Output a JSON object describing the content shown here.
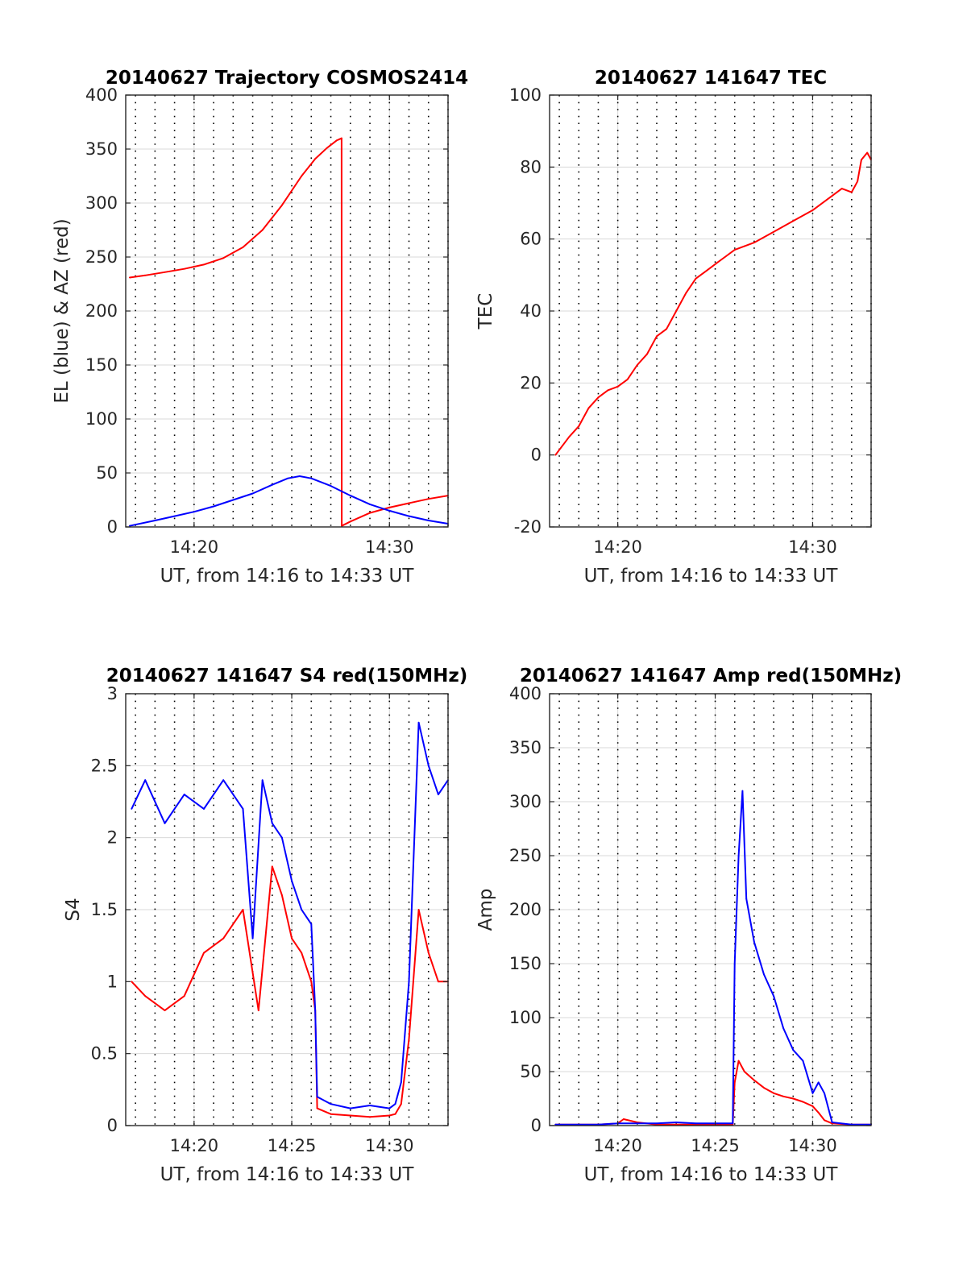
{
  "figure": {
    "background": "#ffffff",
    "grid_color": "#d9d9d9",
    "dotted_color": "#000000",
    "axis_color": "#262626"
  },
  "chart_data": [
    {
      "id": "trajectory",
      "type": "line",
      "title": "20140627 Trajectory COSMOS2414",
      "xlabel": "UT, from 14:16 to 14:33 UT",
      "ylabel": "EL (blue) & AZ (red)",
      "xlim_minutes": [
        16.5,
        33.0
      ],
      "ylim": [
        0,
        400
      ],
      "yticks": [
        "0",
        "50",
        "100",
        "150",
        "200",
        "250",
        "300",
        "350",
        "400"
      ],
      "xticks": [
        {
          "minute": 20,
          "label": "14:20"
        },
        {
          "minute": 30,
          "label": "14:30"
        }
      ],
      "grid": true,
      "series": [
        {
          "color": "#ff0000",
          "x": [
            16.7,
            17.5,
            18.5,
            19.5,
            20.5,
            21.5,
            22.5,
            23.5,
            24.5,
            25.5,
            26.2,
            26.8,
            27.3,
            27.55,
            27.56,
            28.0,
            29.0,
            30.0,
            31.0,
            32.0,
            33.0
          ],
          "y": [
            231,
            233,
            236,
            239,
            243,
            249,
            259,
            275,
            298,
            325,
            341,
            351,
            358,
            360,
            1,
            5,
            13,
            18,
            22,
            26,
            29
          ]
        },
        {
          "color": "#0000ff",
          "x": [
            16.7,
            18.0,
            19.0,
            20.0,
            21.0,
            22.0,
            23.0,
            24.0,
            24.8,
            25.4,
            26.0,
            27.0,
            28.0,
            29.0,
            30.0,
            31.0,
            32.0,
            33.0
          ],
          "y": [
            1,
            6,
            10,
            14,
            19,
            25,
            31,
            39,
            45,
            47,
            45,
            38,
            29,
            21,
            15,
            10,
            6,
            3
          ]
        }
      ]
    },
    {
      "id": "tec",
      "type": "line",
      "title": "20140627 141647 TEC",
      "xlabel": "UT, from 14:16 to 14:33 UT",
      "ylabel": "TEC",
      "xlim_minutes": [
        16.5,
        33.0
      ],
      "ylim": [
        -20,
        100
      ],
      "yticks": [
        "-20",
        "0",
        "20",
        "40",
        "60",
        "80",
        "100"
      ],
      "xticks": [
        {
          "minute": 20,
          "label": "14:20"
        },
        {
          "minute": 30,
          "label": "14:30"
        }
      ],
      "grid": true,
      "series": [
        {
          "color": "#ff0000",
          "x": [
            16.8,
            17.5,
            18.0,
            18.5,
            19.0,
            19.5,
            20.0,
            20.5,
            21.0,
            21.5,
            22.0,
            22.5,
            23.0,
            23.5,
            24.0,
            24.5,
            25.0,
            25.5,
            26.0,
            26.5,
            27.0,
            28.0,
            29.0,
            30.0,
            31.0,
            31.5,
            32.0,
            32.3,
            32.5,
            32.8,
            33.0
          ],
          "y": [
            0,
            5,
            8,
            13,
            16,
            18,
            19,
            21,
            25,
            28,
            33,
            35,
            40,
            45,
            49,
            51,
            53,
            55,
            57,
            58,
            59,
            62,
            65,
            68,
            72,
            74,
            73,
            76,
            82,
            84,
            82
          ]
        }
      ]
    },
    {
      "id": "s4",
      "type": "line",
      "title": "20140627 141647 S4 red(150MHz)",
      "xlabel": "UT, from 14:16 to 14:33 UT",
      "ylabel": "S4",
      "xlim_minutes": [
        16.5,
        33.0
      ],
      "ylim": [
        0,
        3
      ],
      "yticks": [
        "0",
        "0.5",
        "1",
        "1.5",
        "2",
        "2.5",
        "3"
      ],
      "xticks": [
        {
          "minute": 20,
          "label": "14:20"
        },
        {
          "minute": 25,
          "label": "14:25"
        },
        {
          "minute": 30,
          "label": "14:30"
        }
      ],
      "grid": true,
      "series": [
        {
          "color": "#ff0000",
          "x": [
            16.8,
            17.5,
            18.5,
            19.5,
            20.5,
            21.5,
            22.5,
            23.3,
            24.0,
            24.5,
            25.0,
            25.5,
            26.0,
            26.2,
            26.3,
            27.0,
            28.0,
            29.0,
            30.0,
            30.3,
            30.6,
            31.0,
            31.5,
            32.0,
            32.5,
            33.0
          ],
          "y": [
            1.0,
            0.9,
            0.8,
            0.9,
            1.2,
            1.3,
            1.5,
            0.8,
            1.8,
            1.6,
            1.3,
            1.2,
            1.0,
            0.8,
            0.12,
            0.08,
            0.07,
            0.06,
            0.07,
            0.08,
            0.15,
            0.6,
            1.5,
            1.2,
            1.0,
            1.0
          ]
        },
        {
          "color": "#0000ff",
          "x": [
            16.8,
            17.5,
            18.5,
            19.5,
            20.5,
            21.5,
            22.5,
            23.0,
            23.5,
            24.0,
            24.5,
            25.0,
            25.5,
            26.0,
            26.2,
            26.3,
            27.0,
            28.0,
            29.0,
            30.0,
            30.3,
            30.6,
            31.0,
            31.5,
            32.0,
            32.5,
            33.0
          ],
          "y": [
            2.2,
            2.4,
            2.1,
            2.3,
            2.2,
            2.4,
            2.2,
            1.3,
            2.4,
            2.1,
            2.0,
            1.7,
            1.5,
            1.4,
            0.8,
            0.2,
            0.15,
            0.12,
            0.14,
            0.12,
            0.15,
            0.3,
            1.0,
            2.8,
            2.5,
            2.3,
            2.4
          ]
        }
      ]
    },
    {
      "id": "amp",
      "type": "line",
      "title": "20140627 141647 Amp red(150MHz)",
      "xlabel": "UT, from 14:16 to 14:33 UT",
      "ylabel": "Amp",
      "xlim_minutes": [
        16.5,
        33.0
      ],
      "ylim": [
        0,
        400
      ],
      "yticks": [
        "0",
        "50",
        "100",
        "150",
        "200",
        "250",
        "300",
        "350",
        "400"
      ],
      "xticks": [
        {
          "minute": 20,
          "label": "14:20"
        },
        {
          "minute": 25,
          "label": "14:25"
        },
        {
          "minute": 30,
          "label": "14:30"
        }
      ],
      "grid": true,
      "series": [
        {
          "color": "#ff0000",
          "x": [
            16.8,
            19.0,
            20.0,
            20.3,
            21.0,
            22.0,
            24.0,
            25.0,
            25.9,
            26.0,
            26.2,
            26.5,
            27.0,
            27.5,
            28.0,
            28.5,
            29.0,
            29.5,
            30.0,
            30.3,
            30.6,
            31.0,
            32.0,
            33.0
          ],
          "y": [
            1,
            1,
            2,
            6,
            3,
            1,
            1,
            1,
            1,
            40,
            60,
            50,
            42,
            35,
            30,
            27,
            25,
            22,
            18,
            12,
            5,
            2,
            1,
            1
          ]
        },
        {
          "color": "#0000ff",
          "x": [
            16.8,
            19.0,
            20.0,
            21.0,
            22.0,
            23.0,
            24.0,
            25.0,
            25.9,
            26.0,
            26.2,
            26.4,
            26.6,
            27.0,
            27.5,
            28.0,
            28.5,
            29.0,
            29.5,
            30.0,
            30.3,
            30.6,
            31.0,
            32.0,
            33.0
          ],
          "y": [
            1,
            1,
            2,
            2,
            2,
            3,
            2,
            2,
            2,
            150,
            250,
            310,
            210,
            170,
            140,
            120,
            90,
            70,
            60,
            30,
            40,
            30,
            3,
            1,
            1
          ]
        }
      ]
    }
  ]
}
